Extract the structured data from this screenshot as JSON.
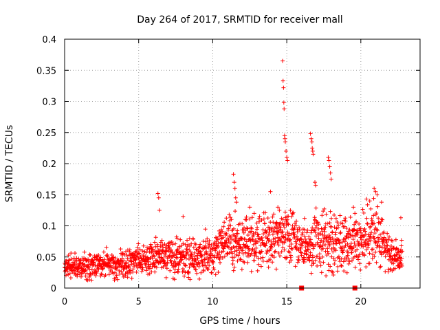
{
  "chart_data": {
    "type": "scatter",
    "title": "Day 264 of 2017, SRMTID for receiver mall",
    "xlabel": "GPS time / hours",
    "ylabel": "SRMTID / TECUs",
    "xlim": [
      0,
      24
    ],
    "ylim": [
      0,
      0.4
    ],
    "xticks": [
      "0",
      "5",
      "10",
      "15",
      "20"
    ],
    "yticks": [
      "0",
      "0.05",
      "0.1",
      "0.15",
      "0.2",
      "0.25",
      "0.3",
      "0.35",
      "0.4"
    ],
    "grid": true,
    "marker": "+",
    "color": "#ff0000",
    "envelope": [
      {
        "x": 0.0,
        "base": 0.032,
        "spread": 0.013
      },
      {
        "x": 1.0,
        "base": 0.034,
        "spread": 0.014
      },
      {
        "x": 2.0,
        "base": 0.036,
        "spread": 0.016
      },
      {
        "x": 3.0,
        "base": 0.037,
        "spread": 0.016
      },
      {
        "x": 4.0,
        "base": 0.038,
        "spread": 0.016
      },
      {
        "x": 5.0,
        "base": 0.046,
        "spread": 0.017
      },
      {
        "x": 6.0,
        "base": 0.047,
        "spread": 0.02
      },
      {
        "x": 7.0,
        "base": 0.05,
        "spread": 0.022
      },
      {
        "x": 8.0,
        "base": 0.048,
        "spread": 0.022
      },
      {
        "x": 9.0,
        "base": 0.046,
        "spread": 0.022
      },
      {
        "x": 10.0,
        "base": 0.055,
        "spread": 0.024
      },
      {
        "x": 11.0,
        "base": 0.078,
        "spread": 0.028
      },
      {
        "x": 12.0,
        "base": 0.08,
        "spread": 0.028
      },
      {
        "x": 13.0,
        "base": 0.075,
        "spread": 0.03
      },
      {
        "x": 14.0,
        "base": 0.08,
        "spread": 0.032
      },
      {
        "x": 15.0,
        "base": 0.085,
        "spread": 0.035
      },
      {
        "x": 16.0,
        "base": 0.062,
        "spread": 0.022
      },
      {
        "x": 17.0,
        "base": 0.07,
        "spread": 0.032
      },
      {
        "x": 18.0,
        "base": 0.07,
        "spread": 0.032
      },
      {
        "x": 19.0,
        "base": 0.07,
        "spread": 0.03
      },
      {
        "x": 20.0,
        "base": 0.075,
        "spread": 0.032
      },
      {
        "x": 21.0,
        "base": 0.085,
        "spread": 0.035
      },
      {
        "x": 22.0,
        "base": 0.055,
        "spread": 0.02
      },
      {
        "x": 22.8,
        "base": 0.05,
        "spread": 0.018
      }
    ],
    "point_count": 1700,
    "outliers": [
      {
        "x": 14.72,
        "y": 0.365
      },
      {
        "x": 14.75,
        "y": 0.333
      },
      {
        "x": 14.78,
        "y": 0.322
      },
      {
        "x": 14.8,
        "y": 0.298
      },
      {
        "x": 14.82,
        "y": 0.288
      },
      {
        "x": 14.85,
        "y": 0.245
      },
      {
        "x": 14.88,
        "y": 0.24
      },
      {
        "x": 14.9,
        "y": 0.235
      },
      {
        "x": 14.95,
        "y": 0.22
      },
      {
        "x": 15.0,
        "y": 0.21
      },
      {
        "x": 15.05,
        "y": 0.205
      },
      {
        "x": 16.6,
        "y": 0.248
      },
      {
        "x": 16.65,
        "y": 0.24
      },
      {
        "x": 16.7,
        "y": 0.235
      },
      {
        "x": 16.72,
        "y": 0.225
      },
      {
        "x": 16.75,
        "y": 0.22
      },
      {
        "x": 16.78,
        "y": 0.215
      },
      {
        "x": 16.9,
        "y": 0.17
      },
      {
        "x": 16.95,
        "y": 0.165
      },
      {
        "x": 17.8,
        "y": 0.21
      },
      {
        "x": 17.85,
        "y": 0.205
      },
      {
        "x": 17.9,
        "y": 0.195
      },
      {
        "x": 17.95,
        "y": 0.185
      },
      {
        "x": 18.0,
        "y": 0.175
      },
      {
        "x": 11.4,
        "y": 0.183
      },
      {
        "x": 11.45,
        "y": 0.17
      },
      {
        "x": 11.5,
        "y": 0.16
      },
      {
        "x": 11.55,
        "y": 0.145
      },
      {
        "x": 11.6,
        "y": 0.138
      },
      {
        "x": 6.3,
        "y": 0.152
      },
      {
        "x": 6.35,
        "y": 0.145
      },
      {
        "x": 6.4,
        "y": 0.125
      },
      {
        "x": 8.0,
        "y": 0.115
      },
      {
        "x": 7.6,
        "y": 0.08
      },
      {
        "x": 13.9,
        "y": 0.155
      },
      {
        "x": 14.4,
        "y": 0.13
      },
      {
        "x": 14.5,
        "y": 0.125
      },
      {
        "x": 20.9,
        "y": 0.16
      },
      {
        "x": 21.0,
        "y": 0.155
      },
      {
        "x": 21.1,
        "y": 0.15
      },
      {
        "x": 20.6,
        "y": 0.14
      },
      {
        "x": 21.4,
        "y": 0.138
      },
      {
        "x": 22.7,
        "y": 0.113
      },
      {
        "x": 12.5,
        "y": 0.13
      },
      {
        "x": 12.8,
        "y": 0.12
      },
      {
        "x": 16.2,
        "y": 0.112
      },
      {
        "x": 19.5,
        "y": 0.13
      },
      {
        "x": 19.6,
        "y": 0.12
      }
    ],
    "zero_markers": [
      {
        "x": 16.0,
        "y": 0.0
      },
      {
        "x": 19.6,
        "y": 0.0
      }
    ]
  }
}
